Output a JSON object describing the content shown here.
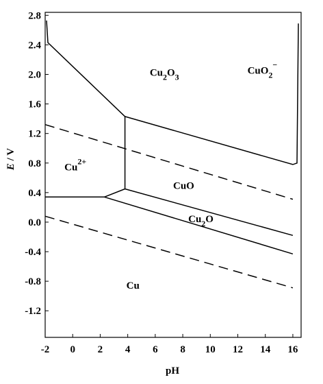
{
  "chart_data": {
    "type": "line",
    "xlabel": "pH",
    "ylabel": [
      "E",
      " / V"
    ],
    "xlim": [
      -2,
      16.6
    ],
    "ylim": [
      -1.56,
      2.84
    ],
    "xticks": [
      -2,
      0,
      2,
      4,
      6,
      8,
      10,
      12,
      14,
      16
    ],
    "yticks": [
      2.8,
      2.4,
      {
        "value": 2,
        "label": "2.0"
      },
      1.6,
      1.2,
      0.8,
      0.4,
      {
        "value": 0,
        "label": "0.0"
      },
      -0.4,
      -0.8,
      -1.2
    ],
    "series": [
      {
        "color": "#000000",
        "dashed": false,
        "x": [
          -1.9,
          -1.8,
          3.8
        ],
        "values": [
          2.73,
          2.43,
          1.43
        ]
      },
      {
        "color": "#000000",
        "dashed": false,
        "x": [
          3.8,
          16,
          16.3,
          16.4
        ],
        "values": [
          1.43,
          0.78,
          0.8,
          2.69
        ]
      },
      {
        "color": "#000000",
        "dashed": false,
        "x": [
          3.8,
          3.8
        ],
        "values": [
          1.43,
          0.45
        ]
      },
      {
        "color": "#000000",
        "dashed": false,
        "x": [
          -2,
          2.3
        ],
        "values": [
          0.34,
          0.34
        ]
      },
      {
        "color": "#000000",
        "dashed": false,
        "x": [
          2.3,
          3.8
        ],
        "values": [
          0.34,
          0.45
        ]
      },
      {
        "color": "#000000",
        "dashed": false,
        "x": [
          3.8,
          16
        ],
        "values": [
          0.45,
          -0.18
        ]
      },
      {
        "color": "#000000",
        "dashed": false,
        "x": [
          2.3,
          16
        ],
        "values": [
          0.34,
          -0.43
        ]
      },
      {
        "color": "#000000",
        "dashed": true,
        "x": [
          -2,
          16
        ],
        "values": [
          1.32,
          0.31
        ]
      },
      {
        "color": "#000000",
        "dashed": true,
        "x": [
          -2,
          16
        ],
        "values": [
          0.08,
          -0.89
        ]
      }
    ],
    "annotations": [
      [
        {
          "text": "Cu"
        },
        {
          "text": "2",
          "shift": "sub"
        },
        {
          "text": "O"
        },
        {
          "text": "3",
          "shift": "sub"
        }
      ],
      [
        {
          "text": "CuO"
        },
        {
          "text": "2",
          "shift": "sub"
        },
        {
          "text": "−",
          "shift": "sup"
        }
      ],
      [
        {
          "text": "Cu"
        },
        {
          "text": "2+",
          "shift": "sup"
        }
      ],
      [
        {
          "text": "CuO"
        }
      ],
      [
        {
          "text": "Cu"
        },
        {
          "text": "2",
          "shift": "sub"
        },
        {
          "text": "O"
        }
      ],
      [
        {
          "text": "Cu"
        }
      ]
    ]
  }
}
